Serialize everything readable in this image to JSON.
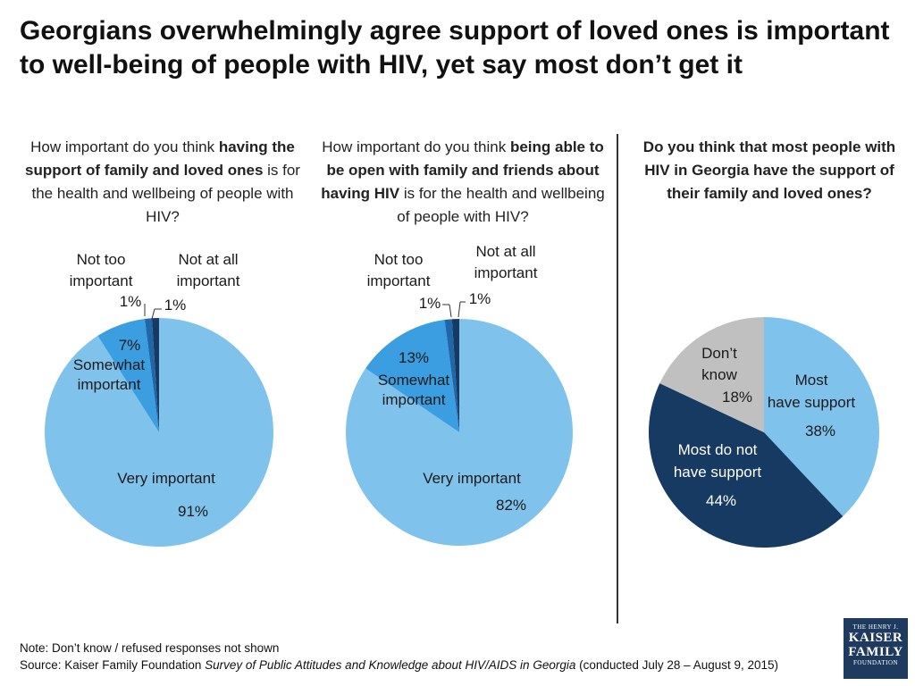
{
  "title": "Georgians overwhelmingly agree support of loved ones is important to well-being of people with HIV, yet say most don’t get it",
  "questions": {
    "q1": {
      "pre": "How important do you think ",
      "bold": "having the support of family and loved ones",
      "post": " is for the health and wellbeing of people with HIV?"
    },
    "q2": {
      "pre": "How important do you think ",
      "bold": "being able to be open with family and friends about having HIV",
      "post": " is for the health and wellbeing of people with HIV?"
    },
    "q3": {
      "text": "Do you think that most people with HIV in Georgia have the support of their family and loved ones?"
    }
  },
  "chart_data": [
    {
      "type": "pie",
      "title": "",
      "slices": [
        {
          "name": "Very important",
          "value": 91,
          "label": "91%",
          "color": "#7fc3ec"
        },
        {
          "name": "Somewhat important",
          "value": 7,
          "label": "7%",
          "color": "#3a9ee0"
        },
        {
          "name": "Not too important",
          "value": 1,
          "label": "1%",
          "color": "#2166a8"
        },
        {
          "name": "Not at all important",
          "value": 1,
          "label": "1%",
          "color": "#173a63"
        }
      ]
    },
    {
      "type": "pie",
      "title": "",
      "slices": [
        {
          "name": "Very important",
          "value": 82,
          "label": "82%",
          "color": "#7fc3ec"
        },
        {
          "name": "Somewhat important",
          "value": 13,
          "label": "13%",
          "color": "#3a9ee0"
        },
        {
          "name": "Not too important",
          "value": 1,
          "label": "1%",
          "color": "#2166a8"
        },
        {
          "name": "Not at all important",
          "value": 1,
          "label": "1%",
          "color": "#173a63"
        }
      ]
    },
    {
      "type": "pie",
      "title": "",
      "slices": [
        {
          "name": "Most have support",
          "value": 38,
          "label": "38%",
          "color": "#7fc3ec"
        },
        {
          "name": "Most do not have support",
          "value": 44,
          "label": "44%",
          "color": "#173a63"
        },
        {
          "name": "Don’t know",
          "value": 18,
          "label": "18%",
          "color": "#c0c0c0"
        }
      ]
    }
  ],
  "footer": {
    "note": "Note: Don’t know / refused responses not shown",
    "source_pre": "Source: Kaiser Family Foundation ",
    "source_italic": "Survey of Public Attitudes and Knowledge about HIV/AIDS in Georgia",
    "source_post": " (conducted July 28 – August 9, 2015)"
  },
  "logo": {
    "line1": "THE HENRY J.",
    "line2": "KAISER",
    "line3": "FAMILY",
    "line4": "FOUNDATION"
  }
}
